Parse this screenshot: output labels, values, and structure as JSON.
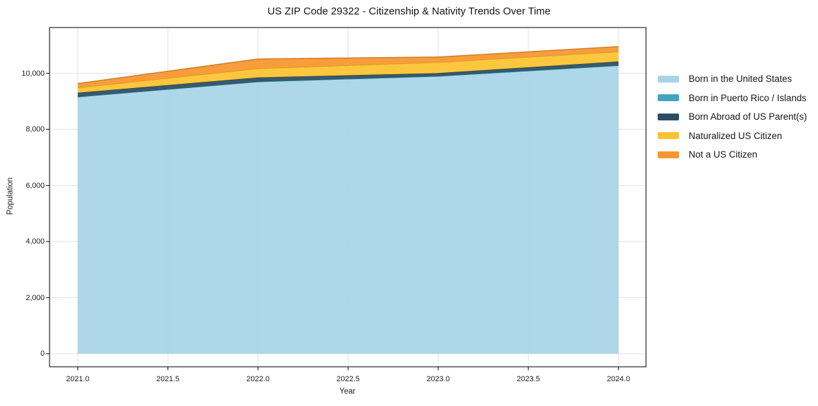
{
  "chart_data": {
    "type": "area",
    "stacked": true,
    "title": "US ZIP Code 29322 - Citizenship & Nativity Trends Over Time",
    "xlabel": "Year",
    "ylabel": "Population",
    "x": [
      2021,
      2022,
      2023,
      2024
    ],
    "series": [
      {
        "name": "Born in the United States",
        "color": "#a8d4e8",
        "values": [
          9160,
          9700,
          9900,
          10280
        ]
      },
      {
        "name": "Born in Puerto Rico / Islands",
        "color": "#3fa5c0",
        "values": [
          0,
          0,
          0,
          0
        ]
      },
      {
        "name": "Born Abroad of US Parent(s)",
        "color": "#2a4d63",
        "values": [
          145,
          150,
          105,
          140
        ]
      },
      {
        "name": "Naturalized US Citizen",
        "color": "#fcc32f",
        "values": [
          180,
          320,
          385,
          350
        ]
      },
      {
        "name": "Not a US Citizen",
        "color": "#f8962d",
        "values": [
          150,
          340,
          190,
          180
        ]
      }
    ],
    "totals": [
      9635,
      10510,
      10580,
      10950
    ],
    "x_tick_labels": [
      "2021.0",
      "2021.5",
      "2022.0",
      "2022.5",
      "2023.0",
      "2023.5",
      "2024.0"
    ],
    "x_tick_values": [
      2021,
      2021.5,
      2022,
      2022.5,
      2023,
      2023.5,
      2024
    ],
    "y_tick_labels": [
      "0",
      "2,000",
      "4,000",
      "6,000",
      "8,000",
      "10,000"
    ],
    "y_tick_values": [
      0,
      2000,
      4000,
      6000,
      8000,
      10000
    ],
    "xlim": [
      2020.84,
      2024.15
    ],
    "ylim": [
      -466,
      11630
    ],
    "grid": true,
    "legend_position": "right",
    "grid_color": "#dedede",
    "spine_color": "#262626"
  }
}
